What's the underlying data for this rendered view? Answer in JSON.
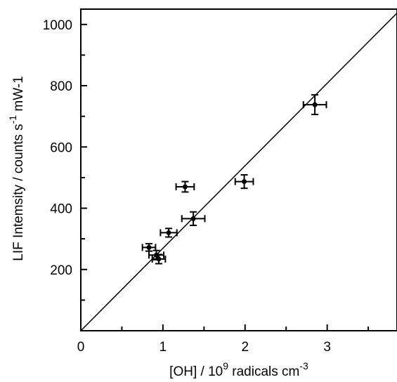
{
  "chart_data": {
    "type": "scatter",
    "xlabel": {
      "base": "[OH] / 10",
      "base_sup": "9",
      "rest": " radicals cm",
      "rest_sup": "-3"
    },
    "ylabel": {
      "base": "LIF Intemsity / counts s",
      "base_sup": "-1",
      "rest": " mW-1"
    },
    "xlim": [
      0,
      3.85
    ],
    "ylim": [
      0,
      1050
    ],
    "x_ticks_major": [
      0,
      1,
      2,
      3
    ],
    "x_tick_labels": [
      "0",
      "1",
      "2",
      "3"
    ],
    "x_ticks_minor": [
      0.5,
      1.5,
      2.5,
      3.5
    ],
    "y_ticks_major": [
      200,
      400,
      600,
      800,
      1000
    ],
    "y_tick_labels": [
      "200",
      "400",
      "600",
      "800",
      "1000"
    ],
    "y_ticks_minor": [
      100,
      300,
      500,
      700,
      900
    ],
    "grid": false,
    "points": [
      {
        "x": 0.83,
        "y": 272,
        "xerr": 0.08,
        "yerr": 12
      },
      {
        "x": 0.92,
        "y": 247,
        "xerr": 0.09,
        "yerr": 15
      },
      {
        "x": 0.95,
        "y": 234,
        "xerr": 0.08,
        "yerr": 15
      },
      {
        "x": 1.07,
        "y": 320,
        "xerr": 0.1,
        "yerr": 14
      },
      {
        "x": 1.27,
        "y": 470,
        "xerr": 0.11,
        "yerr": 17
      },
      {
        "x": 1.37,
        "y": 366,
        "xerr": 0.14,
        "yerr": 22
      },
      {
        "x": 1.99,
        "y": 487,
        "xerr": 0.11,
        "yerr": 22
      },
      {
        "x": 2.85,
        "y": 738,
        "xerr": 0.14,
        "yerr": 32
      }
    ],
    "fit_line": {
      "x": [
        0,
        3.85
      ],
      "y": [
        0,
        1037
      ]
    }
  }
}
